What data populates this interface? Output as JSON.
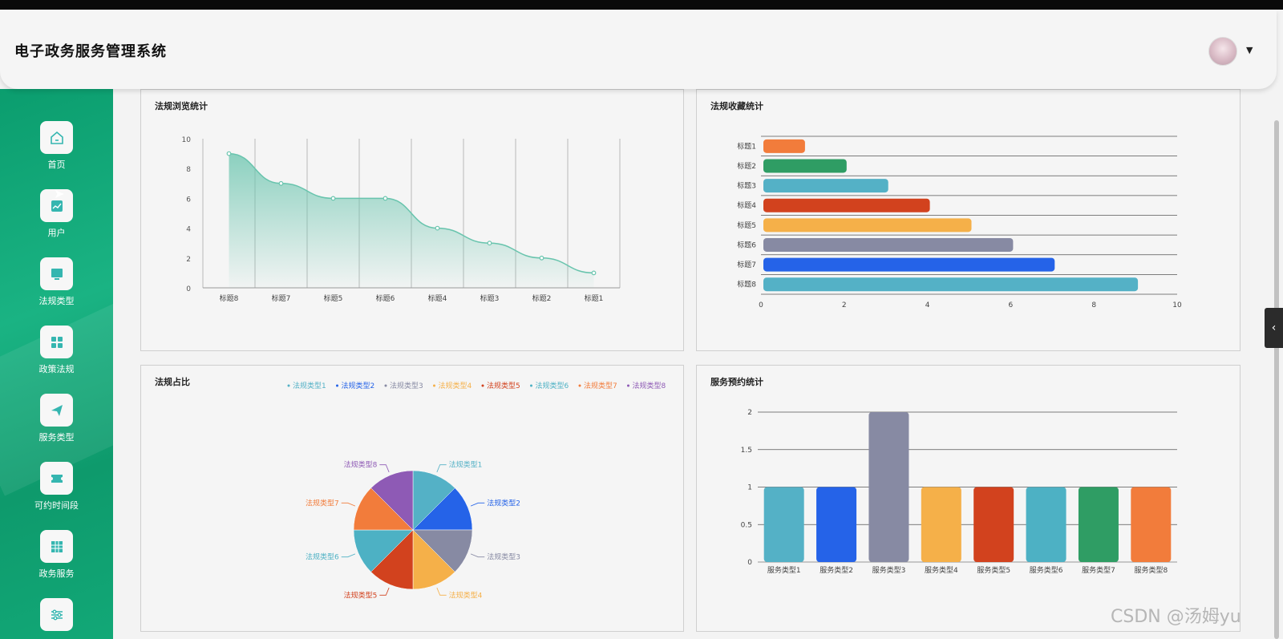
{
  "app_title": "电子政务服务管理系统",
  "sidebar": {
    "items": [
      {
        "label": "首页",
        "icon": "home-icon"
      },
      {
        "label": "用户",
        "icon": "chart-icon"
      },
      {
        "label": "法规类型",
        "icon": "monitor-icon"
      },
      {
        "label": "政策法规",
        "icon": "grid-icon"
      },
      {
        "label": "服务类型",
        "icon": "send-icon"
      },
      {
        "label": "可约时间段",
        "icon": "ticket-icon"
      },
      {
        "label": "政务服务",
        "icon": "table-icon"
      },
      {
        "label": "",
        "icon": "sliders-icon"
      }
    ]
  },
  "watermark": "CSDN @汤姆yu",
  "colors": {
    "sidebar": "#0b9d6e",
    "line": "#68c4ad",
    "palette": [
      "#54b1c6",
      "#2563e8",
      "#878aa3",
      "#f5b049",
      "#d2421e",
      "#4db1c4",
      "#2f9d64",
      "#f27c3b",
      "#8e5ab5"
    ]
  },
  "chart_data": [
    {
      "type": "line",
      "title": "法规浏览统计",
      "categories": [
        "标题8",
        "标题7",
        "标题5",
        "标题6",
        "标题4",
        "标题3",
        "标题2",
        "标题1"
      ],
      "values": [
        9,
        7,
        6,
        6,
        4,
        3,
        2,
        1
      ],
      "ylim": [
        0,
        10
      ],
      "yticks": [
        0,
        2,
        4,
        6,
        8,
        10
      ],
      "area": true,
      "smooth": true
    },
    {
      "type": "bar",
      "orientation": "horizontal",
      "title": "法规收藏统计",
      "categories": [
        "标题1",
        "标题2",
        "标题3",
        "标题4",
        "标题5",
        "标题6",
        "标题7",
        "标题8"
      ],
      "values": [
        1,
        2,
        3,
        4,
        5,
        6,
        7,
        9
      ],
      "xlim": [
        0,
        10
      ],
      "xticks": [
        0,
        2,
        4,
        6,
        8,
        10
      ],
      "colors": [
        "#f27c3b",
        "#2f9d64",
        "#54b1c6",
        "#d2421e",
        "#f5b049",
        "#878aa3",
        "#2563e8",
        "#54b1c6"
      ]
    },
    {
      "type": "pie",
      "title": "法规占比",
      "labels": [
        "法规类型1",
        "法规类型2",
        "法规类型3",
        "法规类型4",
        "法规类型5",
        "法规类型6",
        "法规类型7",
        "法规类型8"
      ],
      "values": [
        1,
        1,
        1,
        1,
        1,
        1,
        1,
        1
      ],
      "colors": [
        "#54b1c6",
        "#2563e8",
        "#878aa3",
        "#f5b049",
        "#d2421e",
        "#4db1c4",
        "#f27c3b",
        "#8e5ab5"
      ],
      "legend": "top"
    },
    {
      "type": "bar",
      "title": "服务预约统计",
      "categories": [
        "服务类型1",
        "服务类型2",
        "服务类型3",
        "服务类型4",
        "服务类型5",
        "服务类型6",
        "服务类型7",
        "服务类型8"
      ],
      "values": [
        1,
        1,
        2,
        1,
        1,
        1,
        1,
        1
      ],
      "ylim": [
        0,
        2
      ],
      "yticks": [
        0,
        0.5,
        1,
        1.5,
        2
      ],
      "colors": [
        "#54b1c6",
        "#2563e8",
        "#878aa3",
        "#f5b049",
        "#d2421e",
        "#4db1c4",
        "#2f9d64",
        "#f27c3b"
      ]
    }
  ]
}
